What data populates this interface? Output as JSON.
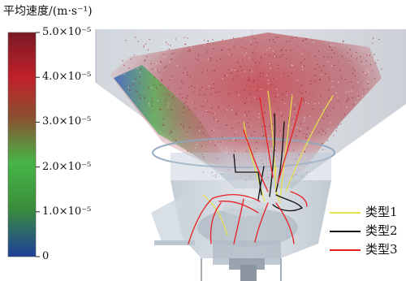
{
  "colorbar": {
    "title": "平均速度/(m·s⁻¹)",
    "ticks": [
      {
        "label": "5.0×10⁻⁵",
        "value": 5.0
      },
      {
        "label": "4.0×10⁻⁵",
        "value": 4.0
      },
      {
        "label": "3.0×10⁻⁵",
        "value": 3.0
      },
      {
        "label": "2.0×10⁻⁵",
        "value": 2.0
      },
      {
        "label": "1.0×10⁻⁵",
        "value": 1.0
      },
      {
        "label": "0",
        "value": 0
      }
    ],
    "colors": [
      "#1f3f9a",
      "#3a8f3a",
      "#47b547",
      "#8a5030",
      "#c0202a",
      "#7a1a24"
    ]
  },
  "legend": {
    "items": [
      {
        "label": "类型1",
        "color": "#e8e04a"
      },
      {
        "label": "类型2",
        "color": "#111111"
      },
      {
        "label": "类型3",
        "color": "#e82020"
      }
    ]
  }
}
